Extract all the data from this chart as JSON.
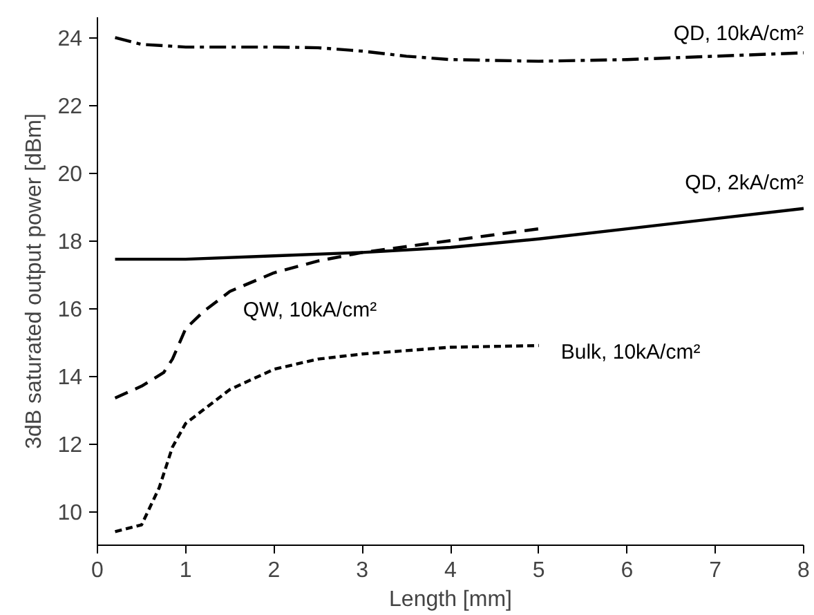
{
  "chart_data": {
    "type": "line",
    "xlabel": "Length [mm]",
    "ylabel": "3dB saturated output power [dBm]",
    "xlim": [
      0,
      8
    ],
    "xticks": [
      0,
      1,
      2,
      3,
      4,
      5,
      6,
      7,
      8
    ],
    "ylim": [
      9,
      24.6
    ],
    "yticks": [
      10,
      12,
      14,
      16,
      18,
      20,
      22,
      24
    ],
    "grid": false,
    "legend": false,
    "series": [
      {
        "name": "QD, 10kA/cm²",
        "color": "#000000",
        "line_style": "dashdot",
        "x": [
          0.2,
          0.5,
          1,
          2,
          2.5,
          3,
          3.5,
          4,
          5,
          6,
          7,
          8
        ],
        "values": [
          24.0,
          23.8,
          23.72,
          23.72,
          23.7,
          23.6,
          23.45,
          23.35,
          23.3,
          23.35,
          23.45,
          23.55
        ]
      },
      {
        "name": "QD, 2kA/cm²",
        "color": "#000000",
        "line_style": "solid",
        "x": [
          0.2,
          1,
          2,
          3,
          4,
          5,
          6,
          7,
          8
        ],
        "values": [
          17.45,
          17.45,
          17.55,
          17.65,
          17.8,
          18.05,
          18.35,
          18.65,
          18.95
        ]
      },
      {
        "name": "QW, 10kA/cm²",
        "color": "#000000",
        "line_style": "dashed",
        "x": [
          0.2,
          0.5,
          0.75,
          0.85,
          1,
          1.2,
          1.5,
          2,
          2.5,
          3,
          4,
          5
        ],
        "values": [
          13.35,
          13.7,
          14.1,
          14.5,
          15.4,
          15.9,
          16.5,
          17.05,
          17.4,
          17.65,
          18.0,
          18.35
        ]
      },
      {
        "name": "Bulk, 10kA/cm²",
        "color": "#000000",
        "line_style": "dotted",
        "x": [
          0.2,
          0.5,
          0.7,
          0.85,
          1,
          1.2,
          1.5,
          2,
          2.5,
          3,
          3.5,
          4,
          5
        ],
        "values": [
          9.4,
          9.6,
          10.7,
          11.9,
          12.6,
          13.0,
          13.6,
          14.2,
          14.5,
          14.65,
          14.75,
          14.85,
          14.9
        ]
      }
    ]
  }
}
